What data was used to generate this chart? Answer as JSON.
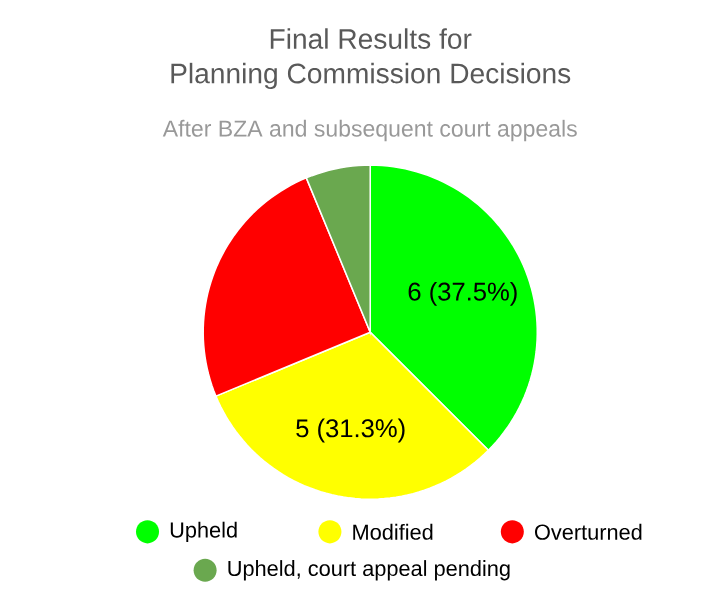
{
  "chart_data": {
    "type": "pie",
    "title": "Final Results for\nPlanning Commission Decisions",
    "subtitle": "After BZA and subsequent court appeals",
    "categories": [
      "Upheld",
      "Modified",
      "Overturned",
      "Upheld, court appeal pending"
    ],
    "values": [
      6,
      5,
      4,
      1
    ],
    "colors": [
      "#00ff00",
      "#ffff00",
      "#ff0000",
      "#6aa84f"
    ],
    "value_labels": [
      "6 (37.5%)",
      "5 (31.3%)",
      null,
      null
    ],
    "legend": "bottom"
  }
}
